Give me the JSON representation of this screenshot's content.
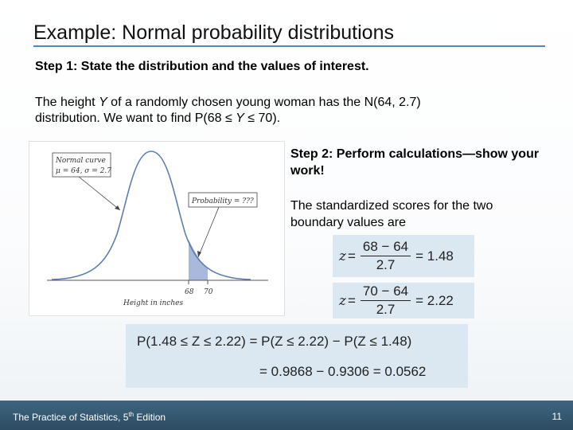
{
  "slide": {
    "title": "Example: Normal probability distributions",
    "step1_heading": "Step 1: State the distribution and the values of interest.",
    "para1_prefix": "The height ",
    "para1_var": "Y",
    "para1_mid": " of a randomly chosen young woman has the N(64, 2.7) distribution. We want to find P(68 ≤ ",
    "para1_var2": "Y",
    "para1_suffix": " ≤ 70).",
    "step2_heading": "Step 2: Perform calculations—show your work!",
    "para2": "The standardized scores for the two boundary values are"
  },
  "figure": {
    "label_curve_line1": "Normal curve",
    "label_curve_line2": "μ = 64, σ = 2.7",
    "label_probability": "Probability = ???",
    "tick_68": "68",
    "tick_70": "70",
    "axis_label": "Height in inches",
    "shade_color": "#a9b9db",
    "curve_color": "#5b7fb0"
  },
  "equations": {
    "eq1": {
      "var": "z",
      "eq": "=",
      "num": "68 − 64",
      "den": "2.7",
      "result": "= 1.48"
    },
    "eq2": {
      "var": "z",
      "eq": "=",
      "num": "70 − 64",
      "den": "2.7",
      "result": "= 2.22"
    },
    "eq3_line1": "P(1.48 ≤ Z ≤ 2.22) = P(Z ≤ 2.22) − P(Z ≤ 1.48)",
    "eq3_line2": "= 0.9868 − 0.9306 = 0.0562"
  },
  "footer": {
    "book_prefix": "The Practice of Statistics, 5",
    "book_sup": "th",
    "book_suffix": " Edition",
    "page": "11"
  }
}
